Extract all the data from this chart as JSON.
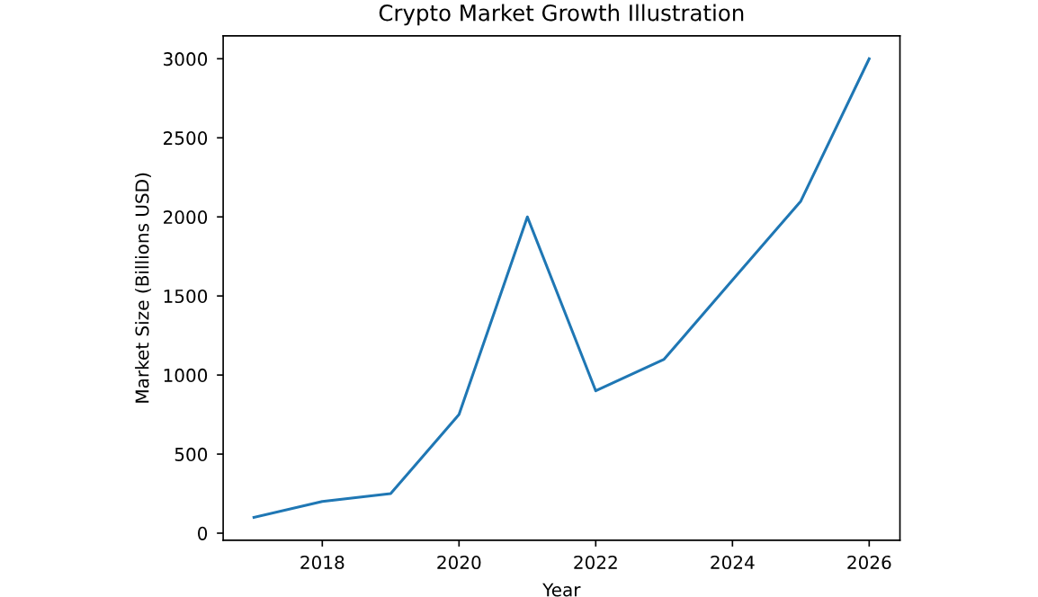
{
  "chart_data": {
    "type": "line",
    "title": "Crypto Market Growth Illustration",
    "xlabel": "Year",
    "ylabel": "Market Size (Billions USD)",
    "x": [
      2017,
      2018,
      2019,
      2020,
      2021,
      2022,
      2023,
      2024,
      2025,
      2026
    ],
    "series": [
      {
        "color": "#1f77b4",
        "values": [
          100,
          200,
          250,
          750,
          2000,
          900,
          1100,
          1600,
          2100,
          3000
        ]
      }
    ],
    "xlim": [
      2016.55,
      2026.45
    ],
    "xticks": [
      2018,
      2020,
      2022,
      2024,
      2026
    ],
    "ylim": [
      -45,
      3145
    ],
    "yticks": [
      0,
      500,
      1000,
      1500,
      2000,
      2500,
      3000
    ],
    "grid": false
  }
}
